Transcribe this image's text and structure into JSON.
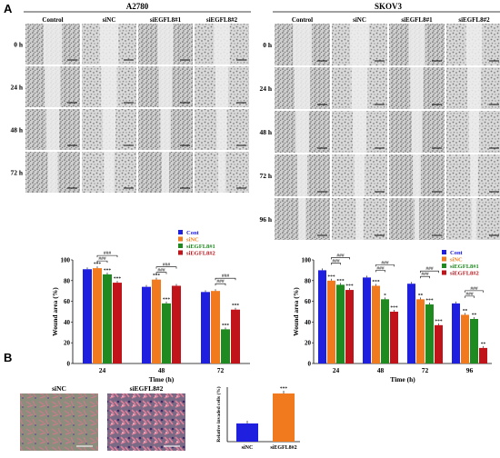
{
  "panels": {
    "a": "A",
    "b": "B"
  },
  "scratch_a2780": {
    "title": "A2780",
    "columns": [
      "Control",
      "siNC",
      "siEGFL8#1",
      "siEGFL8#2"
    ],
    "rows": [
      "0 h",
      "24 h",
      "48 h",
      "72 h"
    ]
  },
  "scratch_skov3": {
    "title": "SKOV3",
    "columns": [
      "Control",
      "siNC",
      "siEGFL8#1",
      "siEGFL8#2"
    ],
    "rows": [
      "0 h",
      "24 h",
      "48 h",
      "72 h",
      "96 h"
    ]
  },
  "invasion": {
    "labels": [
      "siNC",
      "siEGFL8#2"
    ]
  },
  "colors": {
    "cont": "#1f1fe0",
    "sinc": "#f27a1e",
    "si1": "#1f8a1f",
    "si2": "#c0131a"
  },
  "chart_data": [
    {
      "type": "bar",
      "panel": "A2780",
      "categories": [
        "24",
        "48",
        "72"
      ],
      "series": [
        {
          "name": "Cont",
          "values": [
            91,
            74,
            69
          ]
        },
        {
          "name": "siNC",
          "values": [
            92,
            81,
            70
          ]
        },
        {
          "name": "siEGFL8#1",
          "values": [
            86,
            58,
            33
          ]
        },
        {
          "name": "siEGFL8#2",
          "values": [
            78,
            75,
            52
          ]
        }
      ],
      "stars": [
        [
          "",
          "***",
          "***",
          "***"
        ],
        [
          "",
          "***",
          "***",
          ""
        ],
        [
          "",
          "",
          "***",
          "***"
        ]
      ],
      "xlabel": "Time (h)",
      "ylabel": "Wound area (%)",
      "ylim": [
        0,
        100
      ],
      "yticks": [
        0,
        20,
        40,
        60,
        80,
        100
      ],
      "legend": "top-right",
      "comparison_label": "###"
    },
    {
      "type": "bar",
      "panel": "SKOV3",
      "categories": [
        "24",
        "48",
        "72",
        "96"
      ],
      "series": [
        {
          "name": "Cont",
          "values": [
            90,
            83,
            77,
            58
          ]
        },
        {
          "name": "siNC",
          "values": [
            80,
            75,
            62,
            47
          ]
        },
        {
          "name": "siEGFL8#1",
          "values": [
            76,
            62,
            57,
            43
          ]
        },
        {
          "name": "siEGFL8#2",
          "values": [
            71,
            50,
            37,
            15
          ]
        }
      ],
      "stars": [
        [
          "",
          "***",
          "***",
          "***"
        ],
        [
          "",
          "***",
          "*",
          "***"
        ],
        [
          "",
          "**",
          "***",
          "***"
        ],
        [
          "",
          "**",
          "**",
          "**"
        ]
      ],
      "xlabel": "Time (h)",
      "ylabel": "Wound area (%)",
      "ylim": [
        0,
        100
      ],
      "yticks": [
        0,
        20,
        40,
        60,
        80,
        100
      ],
      "legend": "top-right",
      "comparison_label": "###"
    },
    {
      "type": "bar",
      "panel": "Invasion",
      "categories": [
        "siNC",
        "siEGFL8#2"
      ],
      "values": [
        100,
        265
      ],
      "stars": [
        "",
        "***"
      ],
      "ylabel": "Relative invaded cells (%)",
      "ylim": [
        0,
        300
      ]
    }
  ]
}
